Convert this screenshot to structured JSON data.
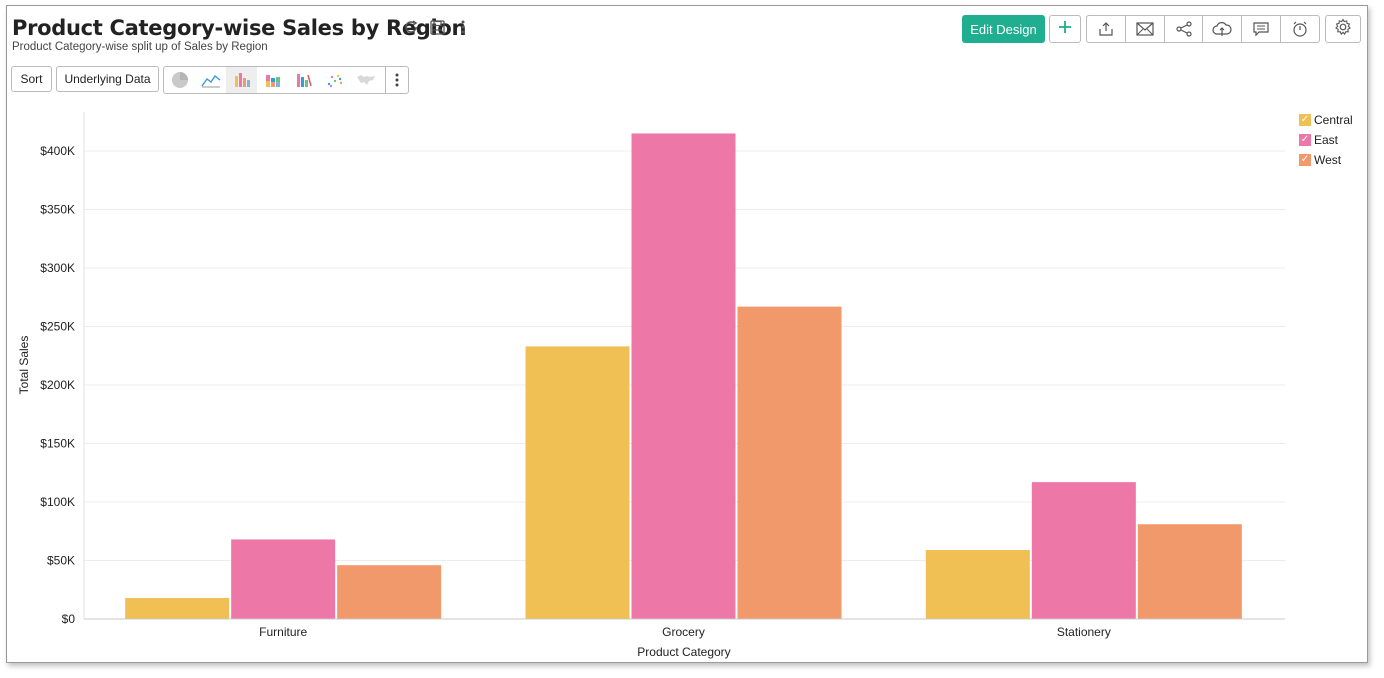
{
  "header": {
    "title": "Product Category-wise Sales by Region",
    "subtitle": "Product Category-wise split up of Sales by Region"
  },
  "toolbar": {
    "sort_label": "Sort",
    "underlying_data_label": "Underlying Data",
    "edit_design_label": "Edit Design"
  },
  "icons": {
    "title": [
      "refresh-icon",
      "save-icon",
      "more-vertical-icon"
    ],
    "chart_types": [
      "pie-chart-icon",
      "line-chart-icon",
      "bar-chart-icon",
      "stacked-bar-chart-icon",
      "waterfall-chart-icon",
      "scatter-chart-icon",
      "map-chart-icon"
    ],
    "tools": [
      "export-icon",
      "email-icon",
      "share-icon",
      "publish-cloud-icon",
      "comment-icon",
      "alarm-icon"
    ]
  },
  "colors": {
    "accent": "#1fae8f",
    "central": "#f0c055",
    "east": "#ed78a8",
    "west": "#f1996a"
  },
  "chart_data": {
    "type": "bar",
    "title": "",
    "xlabel": "Product Category",
    "ylabel": "Total Sales",
    "categories": [
      "Furniture",
      "Grocery",
      "Stationery"
    ],
    "series": [
      {
        "name": "Central",
        "values": [
          18000,
          233000,
          59000
        ]
      },
      {
        "name": "East",
        "values": [
          68000,
          415000,
          117000
        ]
      },
      {
        "name": "West",
        "values": [
          46000,
          267000,
          81000
        ]
      }
    ],
    "ylim": [
      0,
      400000
    ],
    "yticks": [
      "$0",
      "$50K",
      "$100K",
      "$150K",
      "$200K",
      "$250K",
      "$300K",
      "$350K",
      "$400K"
    ],
    "grid": true,
    "legend_position": "top-right"
  }
}
